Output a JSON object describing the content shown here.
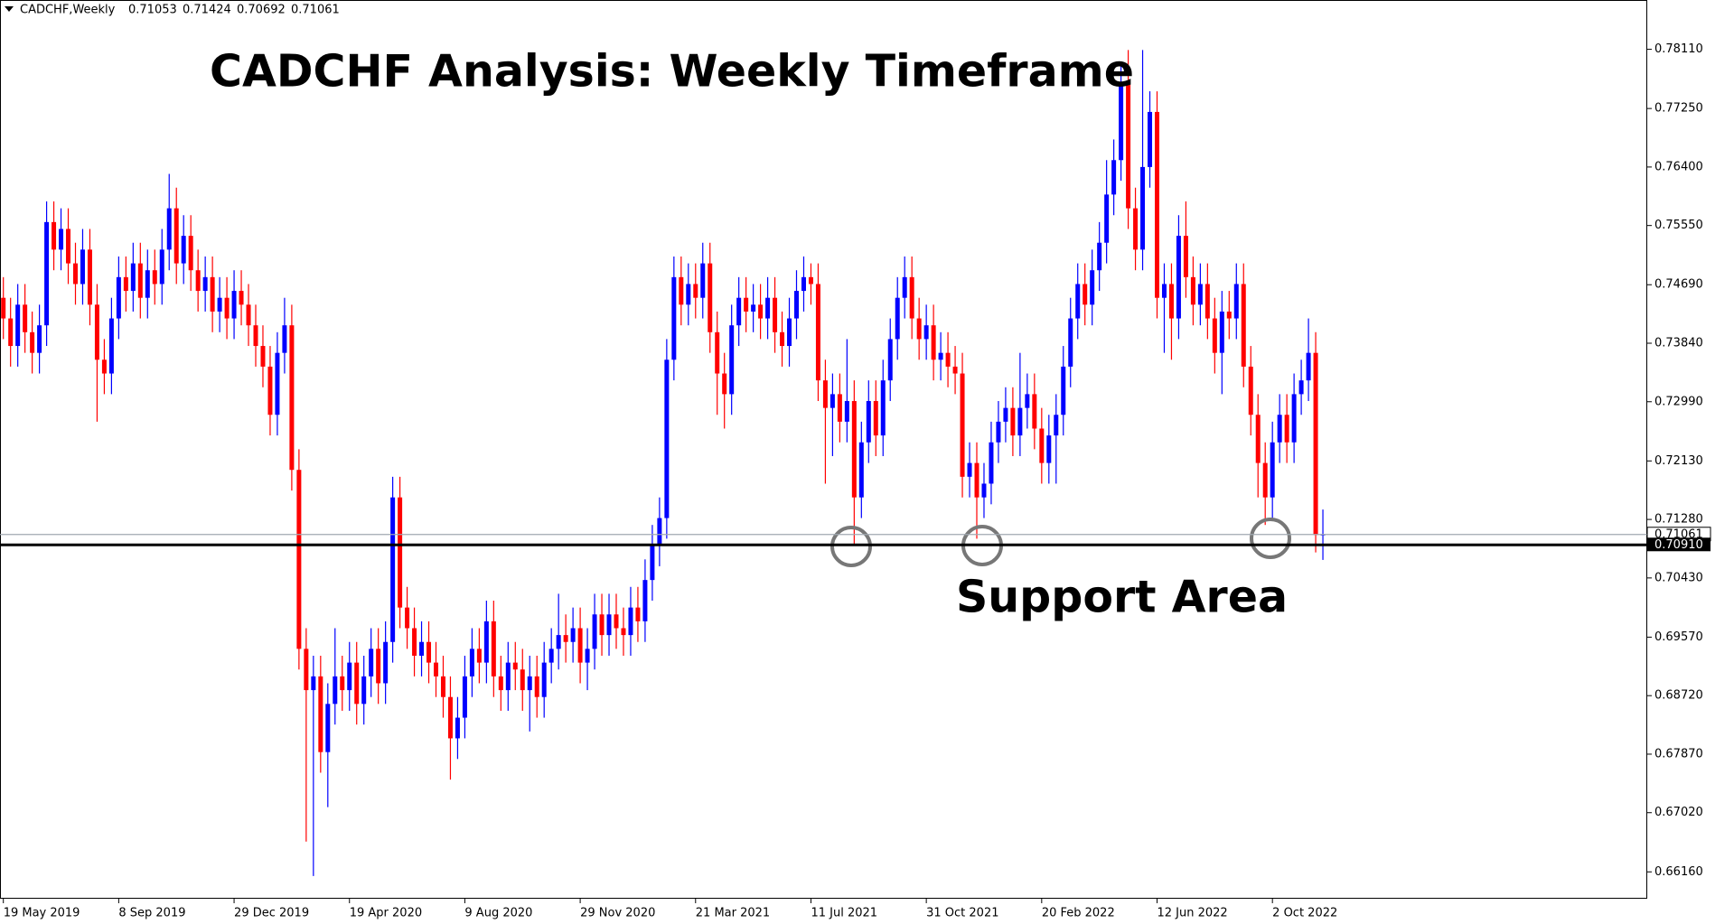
{
  "chart_data": {
    "type": "candlestick",
    "symbol": "CADCHF,Weekly",
    "title": "CADCHF Analysis: Weekly Timeframe",
    "annotation": "Support Area",
    "up_color": "#0000ff",
    "down_color": "#ff0000",
    "ylim": [
      0.6577,
      0.788
    ],
    "yticks": [
      {
        "value": 0.7811,
        "label": "0.78110"
      },
      {
        "value": 0.7725,
        "label": "0.77250"
      },
      {
        "value": 0.764,
        "label": "0.76400"
      },
      {
        "value": 0.7555,
        "label": "0.75550"
      },
      {
        "value": 0.7469,
        "label": "0.74690"
      },
      {
        "value": 0.7384,
        "label": "0.73840"
      },
      {
        "value": 0.7299,
        "label": "0.72990"
      },
      {
        "value": 0.7213,
        "label": "0.72130"
      },
      {
        "value": 0.7128,
        "label": "0.71280"
      },
      {
        "value": 0.7043,
        "label": "0.70430"
      },
      {
        "value": 0.6957,
        "label": "0.69570"
      },
      {
        "value": 0.6872,
        "label": "0.68720"
      },
      {
        "value": 0.6787,
        "label": "0.67870"
      },
      {
        "value": 0.6702,
        "label": "0.67020"
      },
      {
        "value": 0.6616,
        "label": "0.66160"
      }
    ],
    "support_line": {
      "value": 0.7091,
      "label": "0.70910"
    },
    "bid_line": 0.71061,
    "categories": [
      "19 May 2019",
      null,
      null,
      null,
      null,
      null,
      null,
      null,
      null,
      null,
      null,
      null,
      null,
      null,
      null,
      null,
      "8 Sep 2019",
      null,
      null,
      null,
      null,
      null,
      null,
      null,
      null,
      null,
      null,
      null,
      null,
      null,
      null,
      null,
      "29 Dec 2019",
      null,
      null,
      null,
      null,
      null,
      null,
      null,
      null,
      null,
      null,
      null,
      null,
      null,
      null,
      null,
      "19 Apr 2020",
      null,
      null,
      null,
      null,
      null,
      null,
      null,
      null,
      null,
      null,
      null,
      null,
      null,
      null,
      null,
      "9 Aug 2020",
      null,
      null,
      null,
      null,
      null,
      null,
      null,
      null,
      null,
      null,
      null,
      null,
      null,
      null,
      null,
      "29 Nov 2020",
      null,
      null,
      null,
      null,
      null,
      null,
      null,
      null,
      null,
      null,
      null,
      null,
      null,
      null,
      null,
      "21 Mar 2021",
      null,
      null,
      null,
      null,
      null,
      null,
      null,
      null,
      null,
      null,
      null,
      null,
      null,
      null,
      null,
      "11 Jul 2021",
      null,
      null,
      null,
      null,
      null,
      null,
      null,
      null,
      null,
      null,
      null,
      null,
      null,
      null,
      null,
      "31 Oct 2021",
      null,
      null,
      null,
      null,
      null,
      null,
      null,
      null,
      null,
      null,
      null,
      null,
      null,
      null,
      null,
      "20 Feb 2022",
      null,
      null,
      null,
      null,
      null,
      null,
      null,
      null,
      null,
      null,
      null,
      null,
      null,
      null,
      null,
      "12 Jun 2022",
      null,
      null,
      null,
      null,
      null,
      null,
      null,
      null,
      null,
      null,
      null,
      null,
      null,
      null,
      null,
      "2 Oct 2022",
      null,
      null,
      null,
      null,
      null,
      null,
      null
    ],
    "open": [
      0.745,
      0.742,
      0.738,
      0.744,
      0.74,
      0.737,
      0.741,
      0.756,
      0.752,
      0.755,
      0.75,
      0.747,
      0.752,
      0.744,
      0.736,
      0.734,
      0.742,
      0.748,
      0.746,
      0.75,
      0.745,
      0.749,
      0.747,
      0.752,
      0.758,
      0.75,
      0.754,
      0.749,
      0.746,
      0.748,
      0.743,
      0.745,
      0.742,
      0.746,
      0.744,
      0.741,
      0.738,
      0.735,
      0.728,
      0.737,
      0.741,
      0.72,
      0.694,
      0.688,
      0.69,
      0.679,
      0.686,
      0.69,
      0.688,
      0.692,
      0.686,
      0.69,
      0.694,
      0.689,
      0.695,
      0.716,
      0.7,
      0.697,
      0.693,
      0.695,
      0.692,
      0.69,
      0.687,
      0.681,
      0.684,
      0.69,
      0.694,
      0.692,
      0.698,
      0.69,
      0.688,
      0.692,
      0.691,
      0.688,
      0.69,
      0.687,
      0.692,
      0.694,
      0.696,
      0.695,
      0.697,
      0.692,
      0.694,
      0.699,
      0.696,
      0.699,
      0.697,
      0.696,
      0.7,
      0.698,
      0.704,
      0.709,
      0.713,
      0.736,
      0.748,
      0.744,
      0.747,
      0.745,
      0.75,
      0.74,
      0.734,
      0.731,
      0.741,
      0.745,
      0.743,
      0.744,
      0.742,
      0.745,
      0.74,
      0.738,
      0.742,
      0.746,
      0.748,
      0.747,
      0.733,
      0.729,
      0.731,
      0.727,
      0.73,
      0.716,
      0.724,
      0.73,
      0.725,
      0.733,
      0.739,
      0.745,
      0.748,
      0.742,
      0.739,
      0.741,
      0.736,
      0.737,
      0.735,
      0.734,
      0.719,
      0.721,
      0.716,
      0.718,
      0.724,
      0.727,
      0.729,
      0.725,
      0.729,
      0.731,
      0.726,
      0.721,
      0.725,
      0.728,
      0.735,
      0.742,
      0.747,
      0.744,
      0.749,
      0.753,
      0.76,
      0.765,
      0.776,
      0.758,
      0.752,
      0.764,
      0.772,
      0.745,
      0.747,
      0.742,
      0.754,
      0.748,
      0.744,
      0.747,
      0.742,
      0.737,
      0.743,
      0.742,
      0.747,
      0.735,
      0.728,
      0.721,
      0.716,
      0.724,
      0.728,
      0.724,
      0.731,
      0.733,
      0.737,
      0.71053
    ],
    "high": [
      0.748,
      0.745,
      0.747,
      0.747,
      0.743,
      0.744,
      0.759,
      0.759,
      0.758,
      0.758,
      0.753,
      0.755,
      0.755,
      0.747,
      0.739,
      0.745,
      0.751,
      0.751,
      0.753,
      0.753,
      0.752,
      0.752,
      0.755,
      0.763,
      0.761,
      0.757,
      0.757,
      0.752,
      0.751,
      0.751,
      0.748,
      0.748,
      0.749,
      0.749,
      0.747,
      0.744,
      0.741,
      0.738,
      0.74,
      0.745,
      0.744,
      0.723,
      0.697,
      0.693,
      0.693,
      0.689,
      0.697,
      0.693,
      0.695,
      0.695,
      0.693,
      0.697,
      0.697,
      0.698,
      0.719,
      0.719,
      0.703,
      0.7,
      0.698,
      0.698,
      0.695,
      0.693,
      0.69,
      0.687,
      0.693,
      0.697,
      0.697,
      0.701,
      0.701,
      0.693,
      0.695,
      0.695,
      0.694,
      0.693,
      0.693,
      0.695,
      0.697,
      0.702,
      0.699,
      0.7,
      0.7,
      0.697,
      0.702,
      0.702,
      0.702,
      0.702,
      0.7,
      0.703,
      0.703,
      0.707,
      0.712,
      0.716,
      0.739,
      0.751,
      0.751,
      0.75,
      0.75,
      0.753,
      0.753,
      0.743,
      0.737,
      0.744,
      0.748,
      0.748,
      0.747,
      0.747,
      0.748,
      0.748,
      0.743,
      0.745,
      0.749,
      0.751,
      0.75,
      0.75,
      0.736,
      0.734,
      0.734,
      0.739,
      0.733,
      0.727,
      0.733,
      0.733,
      0.736,
      0.742,
      0.748,
      0.751,
      0.751,
      0.745,
      0.744,
      0.744,
      0.74,
      0.74,
      0.738,
      0.737,
      0.724,
      0.724,
      0.721,
      0.727,
      0.73,
      0.732,
      0.732,
      0.737,
      0.734,
      0.734,
      0.729,
      0.728,
      0.731,
      0.738,
      0.745,
      0.75,
      0.75,
      0.752,
      0.756,
      0.765,
      0.768,
      0.779,
      0.781,
      0.761,
      0.781,
      0.775,
      0.775,
      0.75,
      0.75,
      0.757,
      0.759,
      0.751,
      0.75,
      0.75,
      0.745,
      0.746,
      0.746,
      0.75,
      0.75,
      0.738,
      0.731,
      0.724,
      0.727,
      0.731,
      0.731,
      0.734,
      0.736,
      0.742,
      0.74,
      0.71424
    ],
    "low": [
      0.739,
      0.735,
      0.735,
      0.737,
      0.734,
      0.734,
      0.738,
      0.749,
      0.749,
      0.747,
      0.744,
      0.744,
      0.741,
      0.727,
      0.731,
      0.731,
      0.739,
      0.743,
      0.743,
      0.742,
      0.742,
      0.744,
      0.744,
      0.749,
      0.747,
      0.747,
      0.746,
      0.743,
      0.743,
      0.74,
      0.74,
      0.739,
      0.739,
      0.741,
      0.738,
      0.735,
      0.732,
      0.725,
      0.725,
      0.734,
      0.717,
      0.691,
      0.666,
      0.661,
      0.676,
      0.671,
      0.683,
      0.685,
      0.685,
      0.683,
      0.683,
      0.687,
      0.686,
      0.686,
      0.692,
      0.697,
      0.694,
      0.69,
      0.69,
      0.689,
      0.687,
      0.684,
      0.675,
      0.678,
      0.681,
      0.687,
      0.689,
      0.689,
      0.687,
      0.685,
      0.685,
      0.688,
      0.685,
      0.682,
      0.684,
      0.684,
      0.689,
      0.691,
      0.692,
      0.692,
      0.689,
      0.688,
      0.691,
      0.693,
      0.693,
      0.694,
      0.693,
      0.693,
      0.695,
      0.695,
      0.701,
      0.706,
      0.71,
      0.733,
      0.741,
      0.741,
      0.742,
      0.742,
      0.737,
      0.728,
      0.726,
      0.728,
      0.738,
      0.74,
      0.74,
      0.739,
      0.739,
      0.737,
      0.735,
      0.735,
      0.739,
      0.743,
      0.744,
      0.73,
      0.718,
      0.722,
      0.724,
      0.724,
      0.709,
      0.713,
      0.721,
      0.722,
      0.722,
      0.73,
      0.736,
      0.742,
      0.739,
      0.736,
      0.736,
      0.733,
      0.733,
      0.732,
      0.731,
      0.716,
      0.716,
      0.71,
      0.713,
      0.715,
      0.721,
      0.724,
      0.722,
      0.722,
      0.726,
      0.723,
      0.718,
      0.718,
      0.718,
      0.725,
      0.732,
      0.739,
      0.741,
      0.741,
      0.746,
      0.75,
      0.757,
      0.762,
      0.755,
      0.749,
      0.749,
      0.761,
      0.742,
      0.737,
      0.736,
      0.739,
      0.745,
      0.741,
      0.741,
      0.739,
      0.734,
      0.731,
      0.739,
      0.739,
      0.732,
      0.725,
      0.716,
      0.712,
      0.713,
      0.721,
      0.721,
      0.721,
      0.728,
      0.73,
      0.708,
      0.70692
    ],
    "close": [
      0.742,
      0.738,
      0.744,
      0.74,
      0.737,
      0.741,
      0.756,
      0.752,
      0.755,
      0.75,
      0.747,
      0.752,
      0.744,
      0.736,
      0.734,
      0.742,
      0.748,
      0.746,
      0.75,
      0.745,
      0.749,
      0.747,
      0.752,
      0.758,
      0.75,
      0.754,
      0.749,
      0.746,
      0.748,
      0.743,
      0.745,
      0.742,
      0.746,
      0.744,
      0.741,
      0.738,
      0.735,
      0.728,
      0.737,
      0.741,
      0.72,
      0.694,
      0.688,
      0.69,
      0.679,
      0.686,
      0.69,
      0.688,
      0.692,
      0.686,
      0.69,
      0.694,
      0.689,
      0.695,
      0.716,
      0.7,
      0.697,
      0.693,
      0.695,
      0.692,
      0.69,
      0.687,
      0.681,
      0.684,
      0.69,
      0.694,
      0.692,
      0.698,
      0.69,
      0.688,
      0.692,
      0.691,
      0.688,
      0.69,
      0.687,
      0.692,
      0.694,
      0.696,
      0.695,
      0.697,
      0.692,
      0.694,
      0.699,
      0.696,
      0.699,
      0.697,
      0.696,
      0.7,
      0.698,
      0.704,
      0.709,
      0.713,
      0.736,
      0.748,
      0.744,
      0.747,
      0.745,
      0.75,
      0.74,
      0.734,
      0.731,
      0.741,
      0.745,
      0.743,
      0.744,
      0.742,
      0.745,
      0.74,
      0.738,
      0.742,
      0.746,
      0.748,
      0.747,
      0.733,
      0.729,
      0.731,
      0.727,
      0.73,
      0.716,
      0.724,
      0.73,
      0.725,
      0.733,
      0.739,
      0.745,
      0.748,
      0.742,
      0.739,
      0.741,
      0.736,
      0.737,
      0.735,
      0.734,
      0.719,
      0.721,
      0.716,
      0.718,
      0.724,
      0.727,
      0.729,
      0.725,
      0.729,
      0.731,
      0.726,
      0.721,
      0.725,
      0.728,
      0.735,
      0.742,
      0.747,
      0.744,
      0.749,
      0.753,
      0.76,
      0.765,
      0.776,
      0.758,
      0.752,
      0.764,
      0.772,
      0.745,
      0.747,
      0.742,
      0.754,
      0.748,
      0.744,
      0.747,
      0.742,
      0.737,
      0.743,
      0.742,
      0.747,
      0.735,
      0.728,
      0.721,
      0.716,
      0.724,
      0.728,
      0.724,
      0.731,
      0.733,
      0.737,
      0.71053,
      0.71061
    ]
  }
}
